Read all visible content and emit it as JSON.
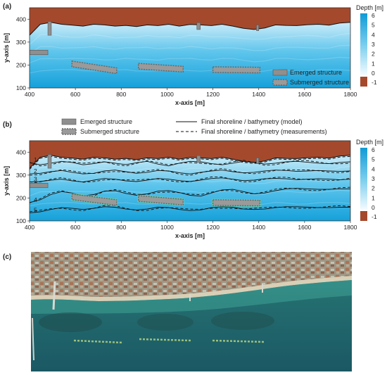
{
  "panels": {
    "a": {
      "label": "(a)"
    },
    "b": {
      "label": "(b)"
    },
    "c": {
      "label": "(c)"
    }
  },
  "legend": {
    "emerged": "Emerged structure",
    "submerged": "Submerged structure",
    "model": "Final shoreline / bathymetry (model)",
    "measurements": "Final shoreline / bathymetry (measurements)"
  },
  "colorbar": {
    "title": "Depth [m]",
    "ticks": [
      "6",
      "5",
      "4",
      "3",
      "2",
      "1",
      "0",
      "-1"
    ]
  },
  "colors": {
    "land": "#a5492c",
    "deep": "#14a3dc",
    "shallow": "#e2f4fc",
    "structure": "#8f8f8f"
  },
  "chart_data": [
    {
      "type": "heatmap",
      "panel": "a",
      "xlabel": "x-axis [m]",
      "ylabel": "y-axis [m]",
      "xlim": [
        400,
        1800
      ],
      "ylim": [
        100,
        450
      ],
      "xticks": [
        "400",
        "600",
        "800",
        "1000",
        "1200",
        "1400",
        "1600",
        "1800"
      ],
      "yticks": [
        "400",
        "300",
        "200",
        "100"
      ],
      "shoreline_y": [
        330,
        378,
        386,
        378,
        374,
        370,
        378,
        375,
        370,
        373,
        368,
        375,
        372,
        378,
        370,
        377,
        375,
        372,
        378,
        370,
        360,
        355,
        362,
        375,
        373,
        372,
        376,
        378,
        374,
        383,
        386
      ],
      "emerged_structures": [
        {
          "x1": 400,
          "x2": 480,
          "y1": 245,
          "y2": 265
        },
        {
          "x1": 480,
          "x2": 495,
          "y1": 330,
          "y2": 390
        },
        {
          "x1": 1130,
          "x2": 1145,
          "y1": 355,
          "y2": 385
        },
        {
          "x1": 1390,
          "x2": 1400,
          "y1": 350,
          "y2": 375
        }
      ],
      "submerged_structures": [
        {
          "x1": 585,
          "y1": 205,
          "x2": 780,
          "y2": 175
        },
        {
          "x1": 875,
          "y1": 195,
          "x2": 1070,
          "y2": 182
        },
        {
          "x1": 1200,
          "y1": 180,
          "x2": 1405,
          "y2": 178
        }
      ]
    },
    {
      "type": "heatmap",
      "panel": "b",
      "xlabel": "x-axis [m]",
      "ylabel": "y-axis [m]",
      "xlim": [
        400,
        1800
      ],
      "ylim": [
        100,
        450
      ],
      "xticks": [
        "400",
        "600",
        "800",
        "1000",
        "1200",
        "1400",
        "1600",
        "1800"
      ],
      "yticks": [
        "400",
        "300",
        "200",
        "100"
      ],
      "shoreline_y": [
        330,
        378,
        386,
        378,
        374,
        370,
        378,
        375,
        370,
        373,
        368,
        375,
        372,
        378,
        370,
        377,
        375,
        372,
        378,
        370,
        360,
        355,
        362,
        375,
        373,
        372,
        376,
        378,
        374,
        383,
        386
      ],
      "contour_labels": [
        "1",
        "2",
        "3",
        "4",
        "5"
      ],
      "contours_y": [
        [
          355,
          345,
          352,
          360,
          355,
          345,
          350,
          358,
          352,
          346,
          354,
          360,
          348,
          340,
          352,
          360,
          358,
          350,
          345,
          352,
          360,
          355,
          348,
          352,
          358,
          360,
          356,
          352,
          350,
          355,
          358
        ],
        [
          305,
          308,
          315,
          320,
          312,
          305,
          308,
          318,
          322,
          315,
          308,
          312,
          320,
          318,
          310,
          305,
          312,
          318,
          322,
          315,
          310,
          312,
          318,
          322,
          320,
          316,
          318,
          320,
          318,
          316,
          318
        ],
        [
          270,
          272,
          278,
          282,
          275,
          270,
          278,
          285,
          282,
          275,
          272,
          278,
          285,
          282,
          276,
          272,
          278,
          285,
          288,
          282,
          276,
          278,
          284,
          286,
          284,
          280,
          282,
          284,
          282,
          280,
          282
        ],
        [
          180,
          192,
          215,
          228,
          222,
          210,
          215,
          230,
          232,
          220,
          212,
          218,
          230,
          232,
          224,
          212,
          208,
          222,
          235,
          238,
          228,
          218,
          222,
          232,
          240,
          242,
          240,
          238,
          238,
          240,
          240
        ],
        [
          135,
          140,
          150,
          158,
          155,
          150,
          155,
          162,
          160,
          152,
          148,
          152,
          160,
          158,
          150,
          145,
          148,
          158,
          162,
          160,
          152,
          150,
          152,
          158,
          162,
          162,
          160,
          158,
          158,
          160,
          160
        ]
      ],
      "emerged_structures": [
        {
          "x1": 400,
          "x2": 480,
          "y1": 245,
          "y2": 265
        },
        {
          "x1": 480,
          "x2": 495,
          "y1": 330,
          "y2": 390
        },
        {
          "x1": 1130,
          "x2": 1145,
          "y1": 355,
          "y2": 385
        },
        {
          "x1": 1390,
          "x2": 1400,
          "y1": 350,
          "y2": 375
        }
      ],
      "submerged_structures": [
        {
          "x1": 585,
          "y1": 205,
          "x2": 780,
          "y2": 180
        },
        {
          "x1": 875,
          "y1": 198,
          "x2": 1070,
          "y2": 182
        },
        {
          "x1": 1200,
          "y1": 180,
          "x2": 1405,
          "y2": 178
        }
      ]
    }
  ],
  "photo": {
    "description_hidden": ""
  }
}
